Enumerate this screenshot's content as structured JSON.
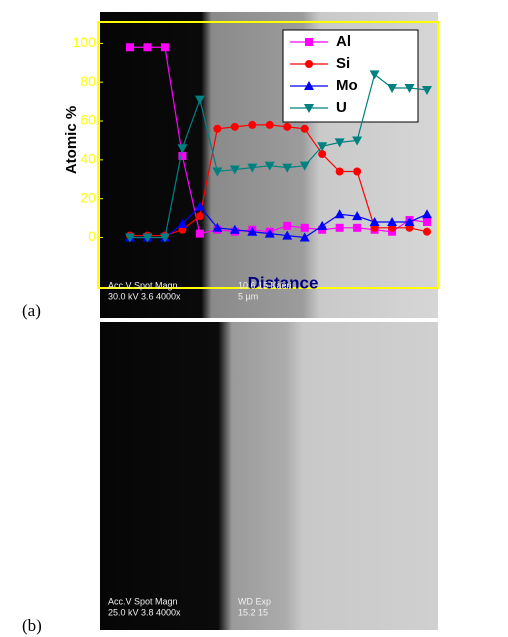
{
  "chart_data": {
    "type": "line",
    "ylabel": "Atomic %",
    "xlabel": "Distance",
    "categories": [
      null,
      null,
      null,
      null,
      null,
      null,
      null,
      null,
      null,
      null,
      null,
      null,
      null,
      null,
      null,
      null,
      null,
      null
    ],
    "ylim": [
      -26,
      111
    ],
    "yticks": [
      0,
      20,
      40,
      60,
      80,
      100
    ],
    "series": [
      {
        "name": "Al",
        "color": "#ff00ff",
        "marker": "square",
        "values": [
          98,
          98,
          98,
          42,
          2,
          4,
          3,
          4,
          3,
          6,
          5,
          4,
          5,
          5,
          4,
          3,
          9,
          8
        ]
      },
      {
        "name": "Si",
        "color": "#ff0000",
        "marker": "circle",
        "values": [
          1,
          1,
          1,
          4,
          11,
          56,
          57,
          58,
          58,
          57,
          56,
          43,
          34,
          34,
          5,
          5,
          5,
          3
        ]
      },
      {
        "name": "Mo",
        "color": "#0000ff",
        "marker": "triangle",
        "values": [
          0,
          0,
          0,
          7,
          16,
          5,
          4,
          3,
          2,
          1,
          0,
          6,
          12,
          11,
          8,
          8,
          8,
          12
        ]
      },
      {
        "name": "U",
        "color": "#008080",
        "marker": "triangle-down",
        "values": [
          0,
          0,
          0,
          46,
          71,
          34,
          35,
          36,
          37,
          36,
          37,
          47,
          49,
          50,
          84,
          77,
          77,
          76
        ]
      }
    ]
  },
  "panels": [
    {
      "label": "(a)",
      "caption_lines": [
        "Acc.V  Spot Magn",
        "30.0 kV 3.6  4000x",
        "10.6  15    Kaeri",
        "5 µm"
      ]
    },
    {
      "label": "(b)",
      "caption_lines": [
        "Acc.V   Spot Magn",
        "25.0 kV 3.8   4000x",
        "WD  Exp",
        "15.2  15"
      ]
    }
  ]
}
